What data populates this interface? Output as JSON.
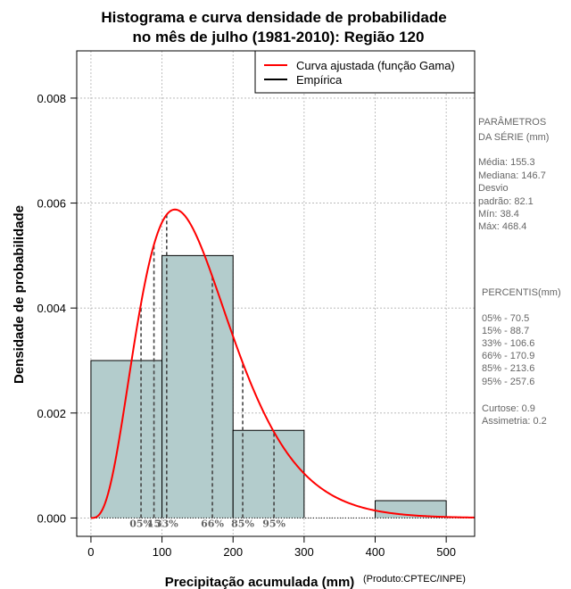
{
  "chart_data": {
    "type": "histogram",
    "title_line1": "Histograma e curva densidade de probabilidade",
    "title_line2": "no mês de julho (1981-2010): Região 120",
    "xlabel": "Precipitação acumulada (mm)",
    "ylabel": "Densidade de probabilidade",
    "credit": "(Produto:CPTEC/INPE)",
    "xlim": [
      -20,
      540
    ],
    "ylim": [
      -0.00035,
      0.0089
    ],
    "x_ticks": [
      0,
      100,
      200,
      300,
      400,
      500
    ],
    "y_ticks": [
      0.0,
      0.002,
      0.004,
      0.006,
      0.008
    ],
    "y_tick_labels": [
      "0.000",
      "0.002",
      "0.004",
      "0.006",
      "0.008"
    ],
    "grid": true,
    "bins": [
      {
        "start": 0,
        "end": 100,
        "density": 0.003
      },
      {
        "start": 100,
        "end": 200,
        "density": 0.005
      },
      {
        "start": 200,
        "end": 300,
        "density": 0.00167
      },
      {
        "start": 400,
        "end": 500,
        "density": 0.00033
      }
    ],
    "gamma_fit": {
      "shape": 4.2,
      "scale": 36.97
    },
    "legend": [
      {
        "label": "Curva ajustada (função Gama)",
        "color": "#ff0000"
      },
      {
        "label": "Empírica",
        "color": "#000000"
      }
    ],
    "percentile_markers": [
      {
        "label": "05%",
        "value": 70.5
      },
      {
        "label": "15%",
        "value": 88.7
      },
      {
        "label": "33%",
        "value": 106.6
      },
      {
        "label": "66%",
        "value": 170.9
      },
      {
        "label": "85%",
        "value": 213.6
      },
      {
        "label": "95%",
        "value": 257.6
      }
    ],
    "percentile_labels_drawn": [
      {
        "text": "05%",
        "x": 70.5
      },
      {
        "text": "15",
        "x": 88.7
      },
      {
        "text": "33%",
        "x": 106.6
      },
      {
        "text": "66%",
        "x": 170.9
      },
      {
        "text": "85%",
        "x": 213.6
      },
      {
        "text": "95%",
        "x": 257.6
      }
    ]
  },
  "side_panel": {
    "lines": [
      "PARÂMETROS",
      " DA SÉRIE (mm)",
      "",
      "Média:  155.3",
      "Mediana:  146.7",
      "Desvio",
      "padrão:  82.1",
      "Mín:  38.4",
      "Máx:  468.4"
    ],
    "lines2": [
      " PERCENTIS(mm)",
      "",
      "05% -  70.5",
      "15% -  88.7",
      "33% -  106.6",
      "66% -  170.9",
      "85% -  213.6",
      "95% -  257.6",
      "",
      "Curtose:  0.9",
      "Assimetria:  0.2"
    ]
  },
  "colors": {
    "bar_fill": "#b3cccc",
    "curve": "#ff0000",
    "grid": "#b0b0b0",
    "marker": "#444444"
  }
}
